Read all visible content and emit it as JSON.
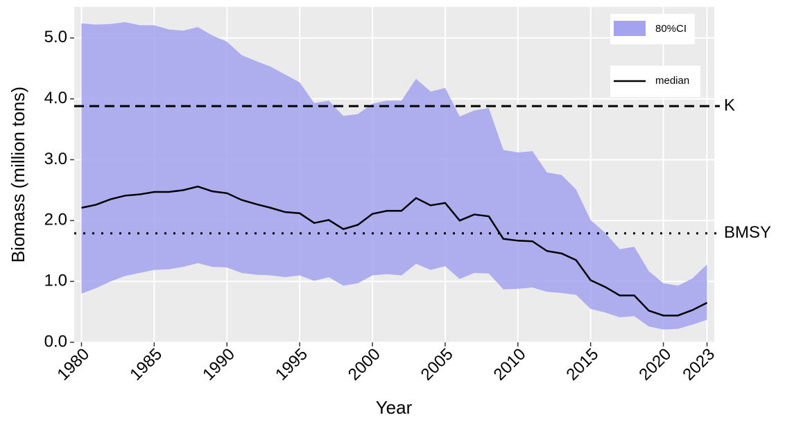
{
  "chart_data": {
    "type": "line",
    "x_label": "Year",
    "y_label": "Biomass (million tons)",
    "x": [
      1980,
      1981,
      1982,
      1983,
      1984,
      1985,
      1986,
      1987,
      1988,
      1989,
      1990,
      1991,
      1992,
      1993,
      1994,
      1995,
      1996,
      1997,
      1998,
      1999,
      2000,
      2001,
      2002,
      2003,
      2004,
      2005,
      2006,
      2007,
      2008,
      2009,
      2010,
      2011,
      2012,
      2013,
      2014,
      2015,
      2016,
      2017,
      2018,
      2019,
      2020,
      2021,
      2022,
      2023
    ],
    "series": [
      {
        "name": "median",
        "color": "#000000",
        "values": [
          2.21,
          2.26,
          2.35,
          2.41,
          2.43,
          2.47,
          2.47,
          2.5,
          2.56,
          2.48,
          2.45,
          2.34,
          2.27,
          2.21,
          2.14,
          2.12,
          1.96,
          2.01,
          1.86,
          1.93,
          2.11,
          2.16,
          2.16,
          2.37,
          2.25,
          2.29,
          2.0,
          2.1,
          2.07,
          1.7,
          1.67,
          1.66,
          1.5,
          1.46,
          1.35,
          1.02,
          0.91,
          0.77,
          0.77,
          0.52,
          0.44,
          0.44,
          0.53,
          0.65
        ]
      }
    ],
    "band": {
      "name": "80%CI",
      "color": "#a3a3f0",
      "upper": [
        5.24,
        5.22,
        5.23,
        5.26,
        5.21,
        5.21,
        5.14,
        5.12,
        5.18,
        5.04,
        4.94,
        4.72,
        4.62,
        4.53,
        4.4,
        4.27,
        3.93,
        3.97,
        3.72,
        3.75,
        3.92,
        3.97,
        3.97,
        4.33,
        4.12,
        4.18,
        3.71,
        3.81,
        3.85,
        3.16,
        3.12,
        3.14,
        2.79,
        2.75,
        2.51,
        2.01,
        1.8,
        1.53,
        1.57,
        1.17,
        0.97,
        0.93,
        1.05,
        1.28
      ],
      "lower": [
        0.8,
        0.89,
        1.0,
        1.09,
        1.14,
        1.19,
        1.2,
        1.24,
        1.3,
        1.24,
        1.23,
        1.14,
        1.11,
        1.1,
        1.07,
        1.1,
        1.01,
        1.07,
        0.93,
        0.97,
        1.1,
        1.12,
        1.1,
        1.29,
        1.19,
        1.25,
        1.04,
        1.14,
        1.13,
        0.87,
        0.88,
        0.9,
        0.83,
        0.81,
        0.78,
        0.55,
        0.49,
        0.41,
        0.43,
        0.26,
        0.21,
        0.22,
        0.29,
        0.37
      ]
    },
    "hlines": [
      {
        "label": "K",
        "value": 3.88,
        "style": "dashed"
      },
      {
        "label": "BMSY",
        "value": 1.79,
        "style": "dotted"
      }
    ],
    "xlim": [
      1979.5,
      2023.5
    ],
    "ylim": [
      0,
      5.51
    ],
    "xticks": [
      1980,
      1985,
      1990,
      1995,
      2000,
      2005,
      2010,
      2015,
      2020,
      2023
    ],
    "yticks": [
      {
        "value": 0,
        "label": "0.0"
      },
      {
        "value": 1,
        "label": "1.0"
      },
      {
        "value": 2,
        "label": "2.0"
      },
      {
        "value": 3,
        "label": "3.0"
      },
      {
        "value": 4,
        "label": "4.0"
      },
      {
        "value": 5,
        "label": "5.0"
      }
    ],
    "grid": true
  }
}
